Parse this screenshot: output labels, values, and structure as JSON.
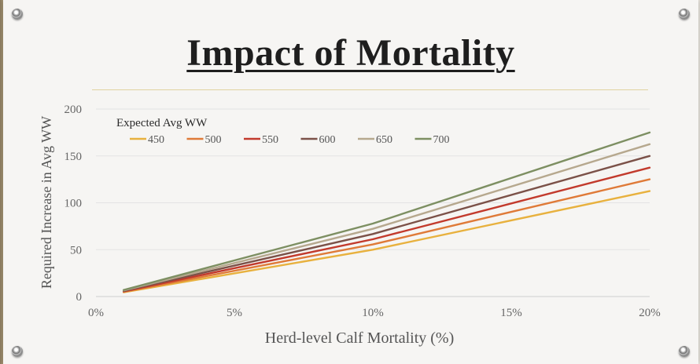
{
  "slide": {
    "title": "Impact of Mortality"
  },
  "chart_data": {
    "type": "line",
    "title": "Impact of Mortality",
    "xlabel": "Herd-level Calf Mortality (%)",
    "ylabel": "Required Increase in Avg WW",
    "legend_title": "Expected Avg WW",
    "legend_position": "top-left",
    "grid": true,
    "x": [
      0.01,
      0.1,
      0.2
    ],
    "xlim": [
      0,
      0.2
    ],
    "ylim": [
      0,
      200
    ],
    "x_ticks": [
      0,
      0.05,
      0.1,
      0.15,
      0.2
    ],
    "x_tick_labels": [
      "0%",
      "5%",
      "10%",
      "15%",
      "20%"
    ],
    "y_ticks": [
      0,
      50,
      100,
      150,
      200
    ],
    "y_tick_labels": [
      "0",
      "50",
      "100",
      "150",
      "200"
    ],
    "series": [
      {
        "name": "450",
        "color": "#e8b13e",
        "values": [
          4.5,
          50,
          112.5
        ]
      },
      {
        "name": "500",
        "color": "#df7a38",
        "values": [
          5.0,
          55.6,
          125
        ]
      },
      {
        "name": "550",
        "color": "#c23a2c",
        "values": [
          5.5,
          61.1,
          137.5
        ]
      },
      {
        "name": "600",
        "color": "#7b5148",
        "values": [
          6.0,
          66.7,
          150
        ]
      },
      {
        "name": "650",
        "color": "#b6a88e",
        "values": [
          6.5,
          72.2,
          162.5
        ]
      },
      {
        "name": "700",
        "color": "#7d8f62",
        "values": [
          7.0,
          77.8,
          175
        ]
      }
    ]
  }
}
